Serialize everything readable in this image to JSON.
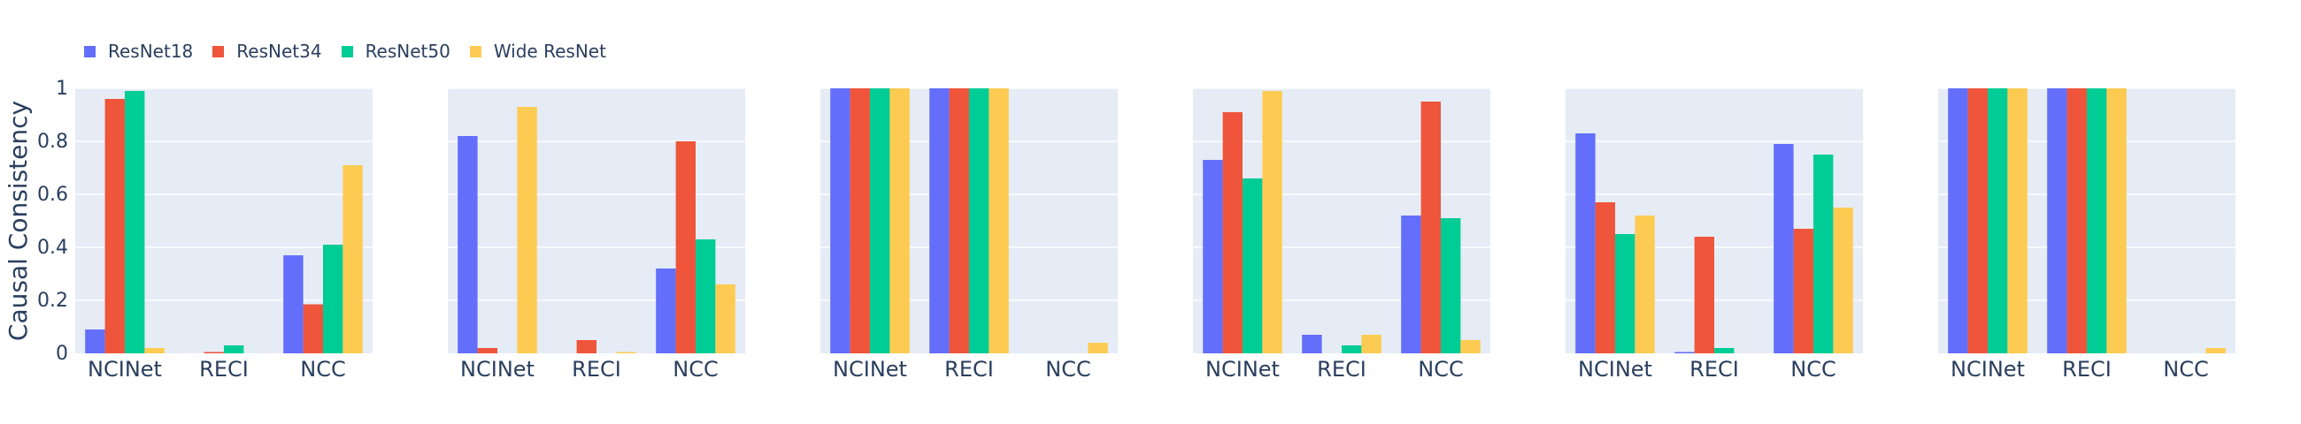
{
  "legend": {
    "items": [
      {
        "label": "ResNet18",
        "color": "#636efa"
      },
      {
        "label": "ResNet34",
        "color": "#ef553b"
      },
      {
        "label": "ResNet50",
        "color": "#00cc96"
      },
      {
        "label": "Wide ResNet",
        "color": "#fecb52"
      }
    ]
  },
  "chart_data": {
    "type": "bar",
    "ylabel": "Causal Consistency",
    "ylim": [
      0,
      1
    ],
    "yticks": [
      "0",
      "0.2",
      "0.4",
      "0.6",
      "0.8",
      "1"
    ],
    "grid": true,
    "legend_position": "top-left",
    "plot_background": "#e5ecf6",
    "panels": [
      {
        "categories": [
          "NCINet",
          "RECI",
          "NCC"
        ],
        "series": [
          {
            "name": "ResNet18",
            "values": [
              0.09,
              0.0,
              0.37
            ]
          },
          {
            "name": "ResNet34",
            "values": [
              0.96,
              0.005,
              0.185
            ]
          },
          {
            "name": "ResNet50",
            "values": [
              0.99,
              0.03,
              0.41
            ]
          },
          {
            "name": "Wide ResNet",
            "values": [
              0.02,
              0.0,
              0.71
            ]
          }
        ]
      },
      {
        "categories": [
          "NCINet",
          "RECI",
          "NCC"
        ],
        "series": [
          {
            "name": "ResNet18",
            "values": [
              0.82,
              0.0,
              0.32
            ]
          },
          {
            "name": "ResNet34",
            "values": [
              0.02,
              0.05,
              0.8
            ]
          },
          {
            "name": "ResNet50",
            "values": [
              0.0,
              0.0,
              0.43
            ]
          },
          {
            "name": "Wide ResNet",
            "values": [
              0.93,
              0.005,
              0.26
            ]
          }
        ]
      },
      {
        "categories": [
          "NCINet",
          "RECI",
          "NCC"
        ],
        "series": [
          {
            "name": "ResNet18",
            "values": [
              1.0,
              1.0,
              0.0
            ]
          },
          {
            "name": "ResNet34",
            "values": [
              1.0,
              1.0,
              0.0
            ]
          },
          {
            "name": "ResNet50",
            "values": [
              1.0,
              1.0,
              0.0
            ]
          },
          {
            "name": "Wide ResNet",
            "values": [
              1.0,
              1.0,
              0.04
            ]
          }
        ]
      },
      {
        "categories": [
          "NCINet",
          "RECI",
          "NCC"
        ],
        "series": [
          {
            "name": "ResNet18",
            "values": [
              0.73,
              0.07,
              0.52
            ]
          },
          {
            "name": "ResNet34",
            "values": [
              0.91,
              0.0,
              0.95
            ]
          },
          {
            "name": "ResNet50",
            "values": [
              0.66,
              0.03,
              0.51
            ]
          },
          {
            "name": "Wide ResNet",
            "values": [
              0.99,
              0.07,
              0.05
            ]
          }
        ]
      },
      {
        "categories": [
          "NCINet",
          "RECI",
          "NCC"
        ],
        "series": [
          {
            "name": "ResNet18",
            "values": [
              0.83,
              0.005,
              0.79
            ]
          },
          {
            "name": "ResNet34",
            "values": [
              0.57,
              0.44,
              0.47
            ]
          },
          {
            "name": "ResNet50",
            "values": [
              0.45,
              0.02,
              0.75
            ]
          },
          {
            "name": "Wide ResNet",
            "values": [
              0.52,
              0.0,
              0.55
            ]
          }
        ]
      },
      {
        "categories": [
          "NCINet",
          "RECI",
          "NCC"
        ],
        "series": [
          {
            "name": "ResNet18",
            "values": [
              1.0,
              1.0,
              0.0
            ]
          },
          {
            "name": "ResNet34",
            "values": [
              1.0,
              1.0,
              0.0
            ]
          },
          {
            "name": "ResNet50",
            "values": [
              1.0,
              1.0,
              0.0
            ]
          },
          {
            "name": "Wide ResNet",
            "values": [
              1.0,
              1.0,
              0.02
            ]
          }
        ]
      }
    ]
  }
}
